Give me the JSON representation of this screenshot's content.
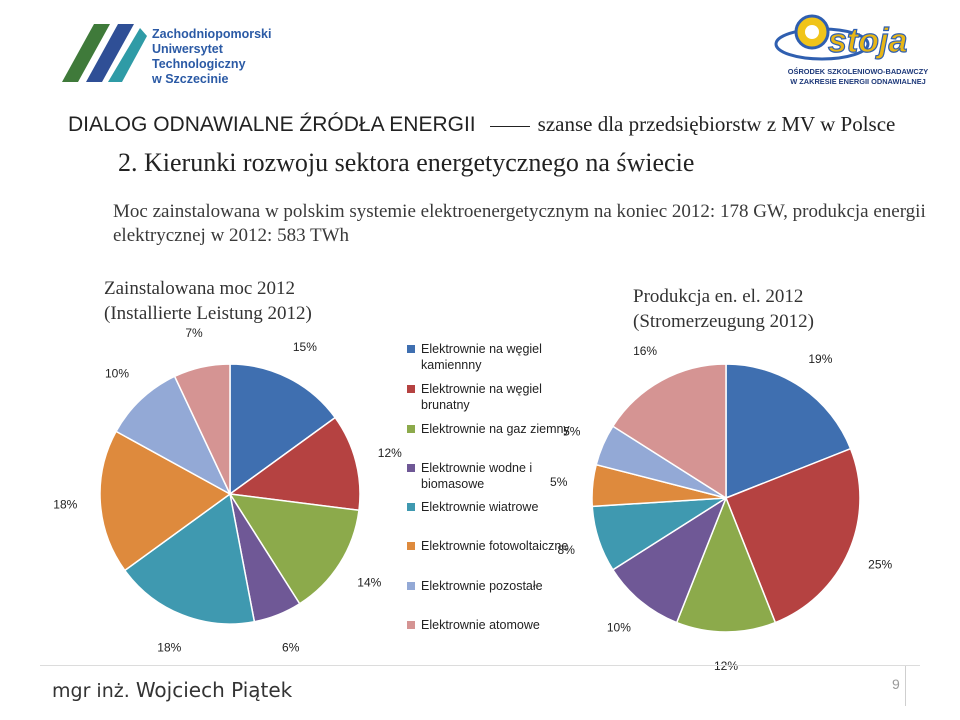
{
  "header": {
    "university_logo_lines": [
      "Zachodniopomorski",
      "Uniwersytet",
      "Technologiczny",
      "w Szczecinie"
    ],
    "ostoja_logo_word": "Ostoja",
    "ostoja_subtitle_lines": [
      "OŚRODEK SZKOLENIOWO-BADAWCZY",
      "W ZAKRESIE ENERGII ODNAWIALNEJ"
    ]
  },
  "title": {
    "part1": "DIALOG ODNAWIALNE ŹRÓDŁA ENERGII",
    "part2": "szanse dla przedsiębiorstw z MV w Polsce"
  },
  "subtitle": "2. Kierunki rozwoju sektora energetycznego na świecie",
  "description": "Moc zainstalowana w polskim systemie elektroenergetycznym na koniec 2012: 178 GW, produkcja energii elektrycznej w 2012: 583 TWh",
  "colors": {
    "hard_coal": "#3f6fb0",
    "lignite": "#b54241",
    "gas": "#8caa4b",
    "hydro_biomass": "#6f5896",
    "wind": "#3f99b0",
    "pv": "#de8a3d",
    "other": "#93a9d6",
    "nuclear": "#d59493"
  },
  "legend": [
    "Elektrownie na węgiel kamiennny",
    "Elektrownie na węgiel brunatny",
    "Elektrownie na gaz ziemny",
    "Elektrownie wodne i biomasowe",
    "Elektrownie wiatrowe",
    "Elektrownie fotowoltaiczne",
    "Elektrownie pozostałe",
    "Elektrownie atomowe"
  ],
  "chart_data": [
    {
      "type": "pie",
      "title": "Zainstalowana moc 2012 (Installierte Leistung 2012)",
      "title_lines": [
        "Zainstalowana moc 2012",
        "(Installierte Leistung 2012)"
      ],
      "categories": [
        "Elektrownie na węgiel kamiennny",
        "Elektrownie na węgiel brunatny",
        "Elektrownie na gaz ziemny",
        "Elektrownie wodne i biomasowe",
        "Elektrownie wiatrowe",
        "Elektrownie fotowoltaiczne",
        "Elektrownie pozostałe",
        "Elektrownie atomowe"
      ],
      "values": [
        15,
        12,
        14,
        6,
        18,
        18,
        10,
        7
      ],
      "labels": [
        "15%",
        "12%",
        "14%",
        "6%",
        "18%",
        "18%",
        "10%",
        "7%"
      ],
      "legend_position": "right"
    },
    {
      "type": "pie",
      "title": "Produkcja en. el. 2012 (Stromerzeugung 2012)",
      "title_lines": [
        "Produkcja en. el. 2012",
        "(Stromerzeugung 2012)"
      ],
      "categories": [
        "Elektrownie na węgiel kamiennny",
        "Elektrownie na węgiel brunatny",
        "Elektrownie na gaz ziemny",
        "Elektrownie wodne i biomasowe",
        "Elektrownie wiatrowe",
        "Elektrownie fotowoltaiczne",
        "Elektrownie pozostałe",
        "Elektrownie atomowe"
      ],
      "values": [
        19,
        25,
        12,
        10,
        8,
        5,
        5,
        16
      ],
      "labels": [
        "19%",
        "25%",
        "12%",
        "10%",
        "8%",
        "5%",
        "5%",
        "16%"
      ],
      "legend_position": "left"
    }
  ],
  "footer": {
    "author_prefix": "mgr inż.",
    "author_name": "Wojciech Piątek",
    "page_number": "9"
  }
}
